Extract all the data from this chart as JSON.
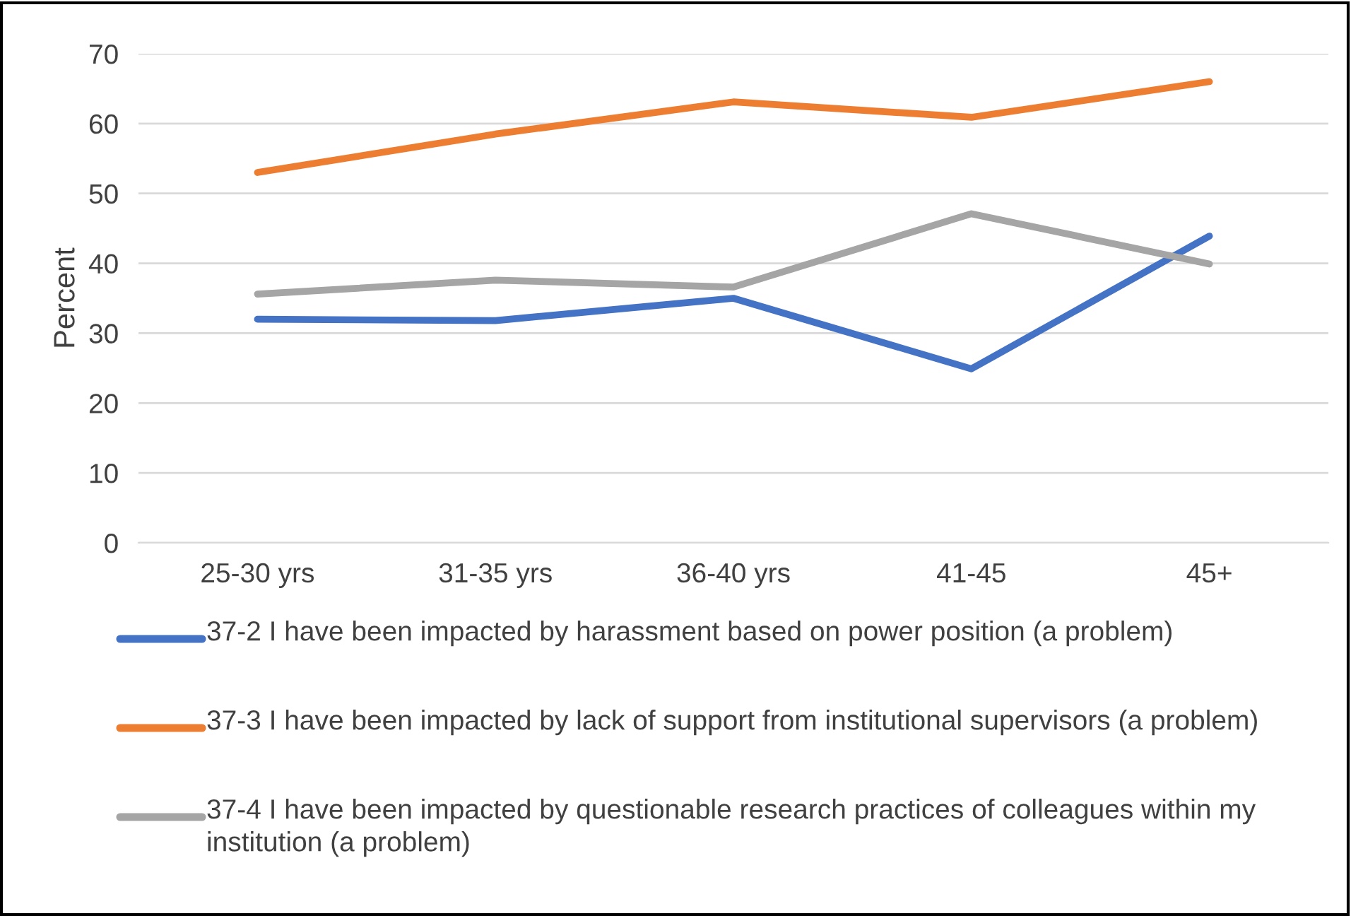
{
  "chart_data": {
    "type": "line",
    "ylabel": "Percent",
    "categories": [
      "25-30 yrs",
      "31-35 yrs",
      "36-40 yrs",
      "41-45",
      "45+"
    ],
    "series": [
      {
        "name": "37-2 I have been impacted by harassment based on power position (a problem)",
        "color": "#4472c4",
        "values": [
          32,
          31.8,
          35,
          24.9,
          43.9
        ]
      },
      {
        "name": "37-3 I have been impacted by lack of support from institutional supervisors (a problem)",
        "color": "#ed7d31",
        "values": [
          53,
          58.5,
          63.1,
          60.9,
          66
        ]
      },
      {
        "name": "37-4 I have been impacted by questionable research practices of colleagues within my institution (a problem)",
        "color": "#a5a5a5",
        "values": [
          35.6,
          37.6,
          36.6,
          47.1,
          39.9
        ]
      }
    ],
    "ylim": [
      0,
      70
    ],
    "yticks": [
      0,
      10,
      20,
      30,
      40,
      50,
      60,
      70
    ],
    "grid": "y",
    "legend": "bottom",
    "marker": "none",
    "line_style": "solid"
  }
}
